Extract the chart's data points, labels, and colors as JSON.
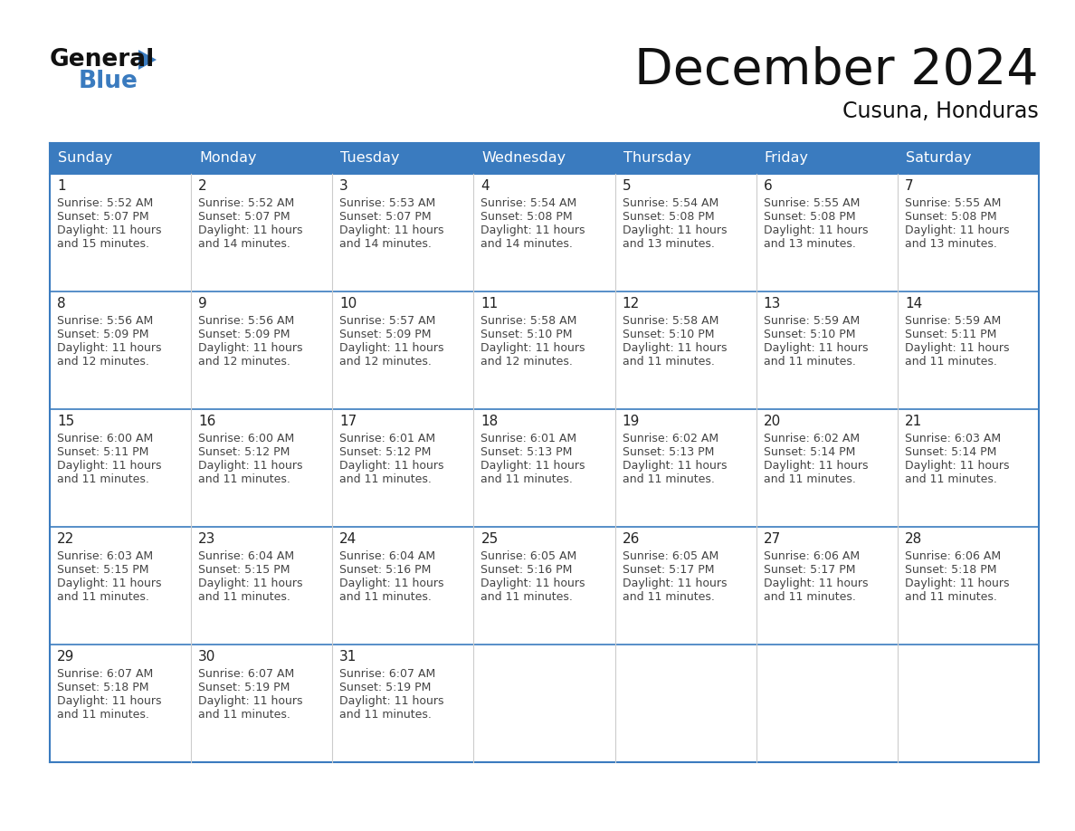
{
  "title": "December 2024",
  "subtitle": "Cusuna, Honduras",
  "header_color": "#3a7bbf",
  "header_text_color": "#ffffff",
  "border_color": "#3a7bbf",
  "row_separator_color": "#3a7bbf",
  "col_separator_color": "#cccccc",
  "text_color": "#444444",
  "day_number_color": "#222222",
  "days_of_week": [
    "Sunday",
    "Monday",
    "Tuesday",
    "Wednesday",
    "Thursday",
    "Friday",
    "Saturday"
  ],
  "calendar_data": [
    [
      {
        "day": 1,
        "sunrise": "5:52 AM",
        "sunset": "5:07 PM",
        "daylight": "11 hours",
        "daylight2": "and 15 minutes."
      },
      {
        "day": 2,
        "sunrise": "5:52 AM",
        "sunset": "5:07 PM",
        "daylight": "11 hours",
        "daylight2": "and 14 minutes."
      },
      {
        "day": 3,
        "sunrise": "5:53 AM",
        "sunset": "5:07 PM",
        "daylight": "11 hours",
        "daylight2": "and 14 minutes."
      },
      {
        "day": 4,
        "sunrise": "5:54 AM",
        "sunset": "5:08 PM",
        "daylight": "11 hours",
        "daylight2": "and 14 minutes."
      },
      {
        "day": 5,
        "sunrise": "5:54 AM",
        "sunset": "5:08 PM",
        "daylight": "11 hours",
        "daylight2": "and 13 minutes."
      },
      {
        "day": 6,
        "sunrise": "5:55 AM",
        "sunset": "5:08 PM",
        "daylight": "11 hours",
        "daylight2": "and 13 minutes."
      },
      {
        "day": 7,
        "sunrise": "5:55 AM",
        "sunset": "5:08 PM",
        "daylight": "11 hours",
        "daylight2": "and 13 minutes."
      }
    ],
    [
      {
        "day": 8,
        "sunrise": "5:56 AM",
        "sunset": "5:09 PM",
        "daylight": "11 hours",
        "daylight2": "and 12 minutes."
      },
      {
        "day": 9,
        "sunrise": "5:56 AM",
        "sunset": "5:09 PM",
        "daylight": "11 hours",
        "daylight2": "and 12 minutes."
      },
      {
        "day": 10,
        "sunrise": "5:57 AM",
        "sunset": "5:09 PM",
        "daylight": "11 hours",
        "daylight2": "and 12 minutes."
      },
      {
        "day": 11,
        "sunrise": "5:58 AM",
        "sunset": "5:10 PM",
        "daylight": "11 hours",
        "daylight2": "and 12 minutes."
      },
      {
        "day": 12,
        "sunrise": "5:58 AM",
        "sunset": "5:10 PM",
        "daylight": "11 hours",
        "daylight2": "and 11 minutes."
      },
      {
        "day": 13,
        "sunrise": "5:59 AM",
        "sunset": "5:10 PM",
        "daylight": "11 hours",
        "daylight2": "and 11 minutes."
      },
      {
        "day": 14,
        "sunrise": "5:59 AM",
        "sunset": "5:11 PM",
        "daylight": "11 hours",
        "daylight2": "and 11 minutes."
      }
    ],
    [
      {
        "day": 15,
        "sunrise": "6:00 AM",
        "sunset": "5:11 PM",
        "daylight": "11 hours",
        "daylight2": "and 11 minutes."
      },
      {
        "day": 16,
        "sunrise": "6:00 AM",
        "sunset": "5:12 PM",
        "daylight": "11 hours",
        "daylight2": "and 11 minutes."
      },
      {
        "day": 17,
        "sunrise": "6:01 AM",
        "sunset": "5:12 PM",
        "daylight": "11 hours",
        "daylight2": "and 11 minutes."
      },
      {
        "day": 18,
        "sunrise": "6:01 AM",
        "sunset": "5:13 PM",
        "daylight": "11 hours",
        "daylight2": "and 11 minutes."
      },
      {
        "day": 19,
        "sunrise": "6:02 AM",
        "sunset": "5:13 PM",
        "daylight": "11 hours",
        "daylight2": "and 11 minutes."
      },
      {
        "day": 20,
        "sunrise": "6:02 AM",
        "sunset": "5:14 PM",
        "daylight": "11 hours",
        "daylight2": "and 11 minutes."
      },
      {
        "day": 21,
        "sunrise": "6:03 AM",
        "sunset": "5:14 PM",
        "daylight": "11 hours",
        "daylight2": "and 11 minutes."
      }
    ],
    [
      {
        "day": 22,
        "sunrise": "6:03 AM",
        "sunset": "5:15 PM",
        "daylight": "11 hours",
        "daylight2": "and 11 minutes."
      },
      {
        "day": 23,
        "sunrise": "6:04 AM",
        "sunset": "5:15 PM",
        "daylight": "11 hours",
        "daylight2": "and 11 minutes."
      },
      {
        "day": 24,
        "sunrise": "6:04 AM",
        "sunset": "5:16 PM",
        "daylight": "11 hours",
        "daylight2": "and 11 minutes."
      },
      {
        "day": 25,
        "sunrise": "6:05 AM",
        "sunset": "5:16 PM",
        "daylight": "11 hours",
        "daylight2": "and 11 minutes."
      },
      {
        "day": 26,
        "sunrise": "6:05 AM",
        "sunset": "5:17 PM",
        "daylight": "11 hours",
        "daylight2": "and 11 minutes."
      },
      {
        "day": 27,
        "sunrise": "6:06 AM",
        "sunset": "5:17 PM",
        "daylight": "11 hours",
        "daylight2": "and 11 minutes."
      },
      {
        "day": 28,
        "sunrise": "6:06 AM",
        "sunset": "5:18 PM",
        "daylight": "11 hours",
        "daylight2": "and 11 minutes."
      }
    ],
    [
      {
        "day": 29,
        "sunrise": "6:07 AM",
        "sunset": "5:18 PM",
        "daylight": "11 hours",
        "daylight2": "and 11 minutes."
      },
      {
        "day": 30,
        "sunrise": "6:07 AM",
        "sunset": "5:19 PM",
        "daylight": "11 hours",
        "daylight2": "and 11 minutes."
      },
      {
        "day": 31,
        "sunrise": "6:07 AM",
        "sunset": "5:19 PM",
        "daylight": "11 hours",
        "daylight2": "and 11 minutes."
      },
      null,
      null,
      null,
      null
    ]
  ]
}
